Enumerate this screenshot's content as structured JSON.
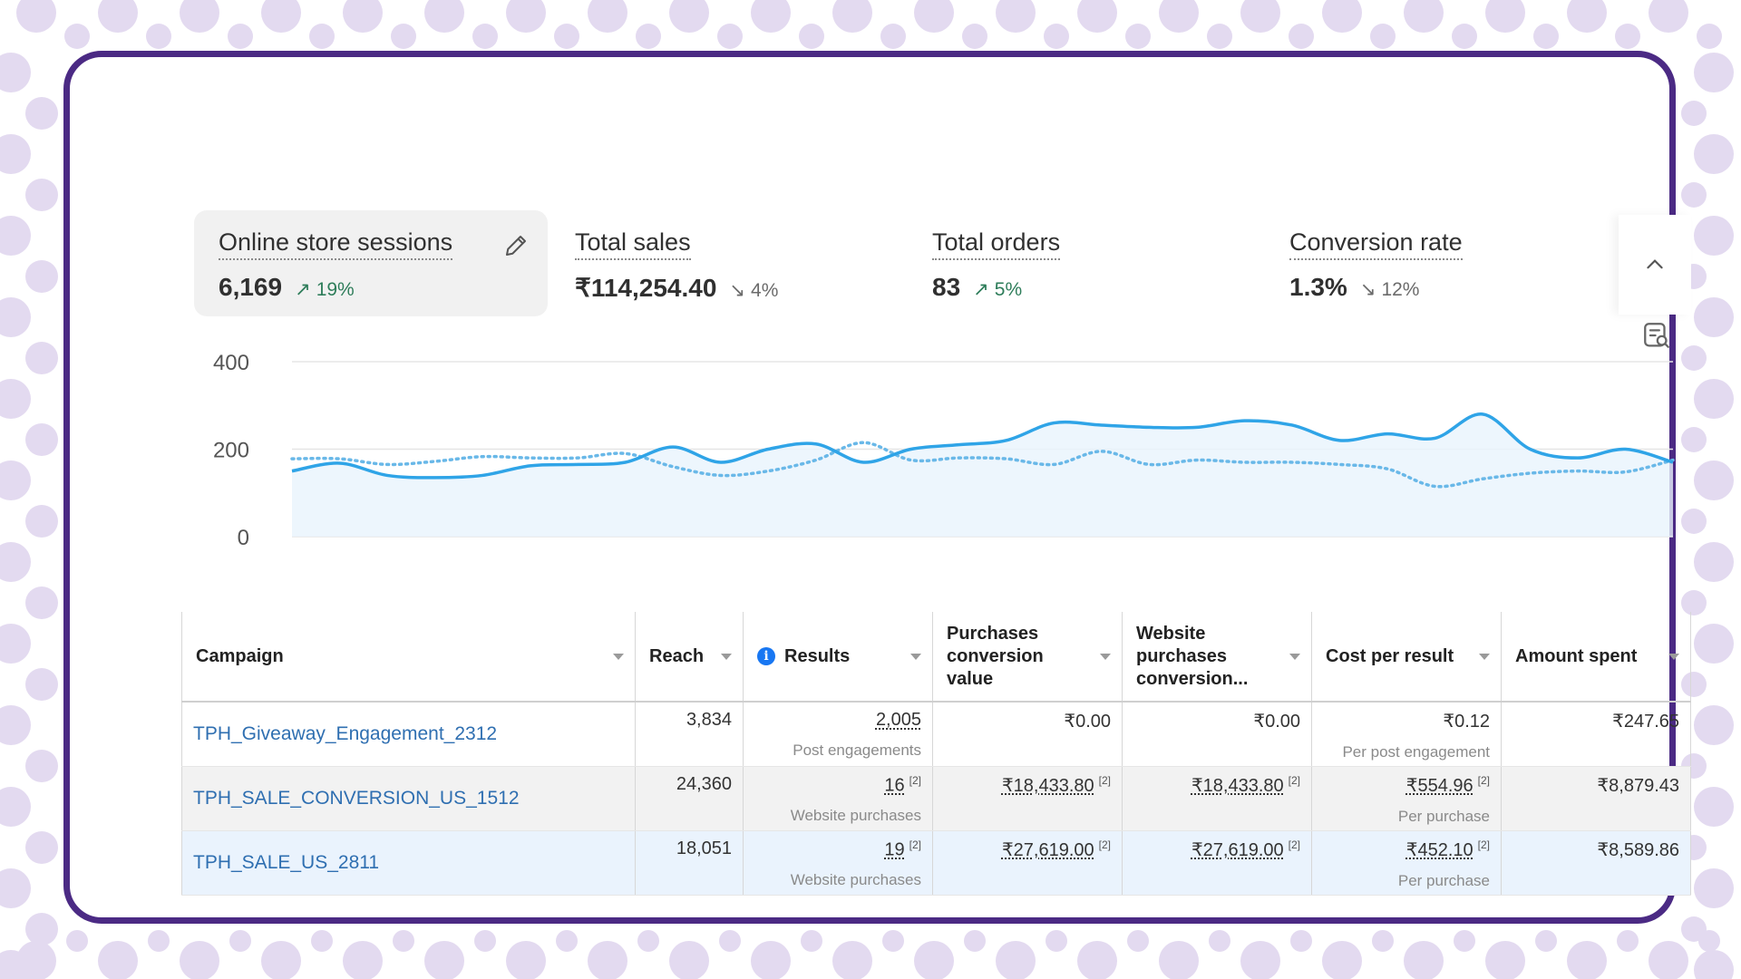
{
  "metrics": [
    {
      "title": "Online store sessions",
      "value": "6,169",
      "delta": "19%",
      "direction": "up"
    },
    {
      "title": "Total sales",
      "value": "₹114,254.40",
      "delta": "4%",
      "direction": "down"
    },
    {
      "title": "Total orders",
      "value": "83",
      "delta": "5%",
      "direction": "up"
    },
    {
      "title": "Conversion rate",
      "value": "1.3%",
      "delta": "12%",
      "direction": "down"
    }
  ],
  "icons": {
    "edit": "pencil-icon",
    "collapse": "chevron-up-icon",
    "filter": "search-filter-icon",
    "up": "arrow-up-right-icon",
    "down": "arrow-down-right-icon"
  },
  "colors": {
    "accent": "#2fa4e7",
    "compare": "#69b8e8",
    "up": "#2e7d5a",
    "down": "#6b6b6b",
    "link": "#2f6fb1",
    "frame": "#4b2a84",
    "dots": "#e3daf0"
  },
  "chart_data": {
    "type": "line",
    "ylim": [
      0,
      400
    ],
    "yticks": [
      "400",
      "200",
      "0"
    ],
    "series": [
      {
        "name": "current",
        "values": [
          150,
          168,
          140,
          135,
          140,
          162,
          165,
          170,
          205,
          170,
          200,
          212,
          170,
          200,
          210,
          220,
          260,
          255,
          250,
          250,
          265,
          255,
          220,
          235,
          225,
          280,
          200,
          180,
          200,
          170
        ]
      },
      {
        "name": "comparison",
        "values": [
          178,
          178,
          165,
          172,
          183,
          180,
          180,
          190,
          160,
          140,
          150,
          175,
          215,
          175,
          180,
          178,
          165,
          195,
          165,
          175,
          170,
          170,
          165,
          155,
          115,
          132,
          145,
          150,
          148,
          175
        ]
      }
    ]
  },
  "table": {
    "columns": [
      {
        "label": "Campaign"
      },
      {
        "label": "Reach"
      },
      {
        "label": "Results"
      },
      {
        "label": "Purchases conversion value"
      },
      {
        "label": "Website purchases conversion..."
      },
      {
        "label": "Cost per result"
      },
      {
        "label": "Amount spent"
      }
    ],
    "rows": [
      {
        "campaign": "TPH_Giveaway_Engagement_2312",
        "reach": "3,834",
        "results": "2,005",
        "results_sub": "Post engagements",
        "results_sup": "",
        "pcv": "₹0.00",
        "pcv_sup": "",
        "wpc": "₹0.00",
        "wpc_sup": "",
        "cpr": "₹0.12",
        "cpr_sup": "",
        "cpr_sub": "Per post engagement",
        "spent": "₹247.65"
      },
      {
        "campaign": "TPH_SALE_CONVERSION_US_1512",
        "reach": "24,360",
        "results": "16",
        "results_sub": "Website purchases",
        "results_sup": "[2]",
        "pcv": "₹18,433.80",
        "pcv_sup": "[2]",
        "wpc": "₹18,433.80",
        "wpc_sup": "[2]",
        "cpr": "₹554.96",
        "cpr_sup": "[2]",
        "cpr_sub": "Per purchase",
        "spent": "₹8,879.43"
      },
      {
        "campaign": "TPH_SALE_US_2811",
        "reach": "18,051",
        "results": "19",
        "results_sub": "Website purchases",
        "results_sup": "[2]",
        "pcv": "₹27,619.00",
        "pcv_sup": "[2]",
        "wpc": "₹27,619.00",
        "wpc_sup": "[2]",
        "cpr": "₹452.10",
        "cpr_sup": "[2]",
        "cpr_sub": "Per purchase",
        "spent": "₹8,589.86"
      }
    ]
  }
}
